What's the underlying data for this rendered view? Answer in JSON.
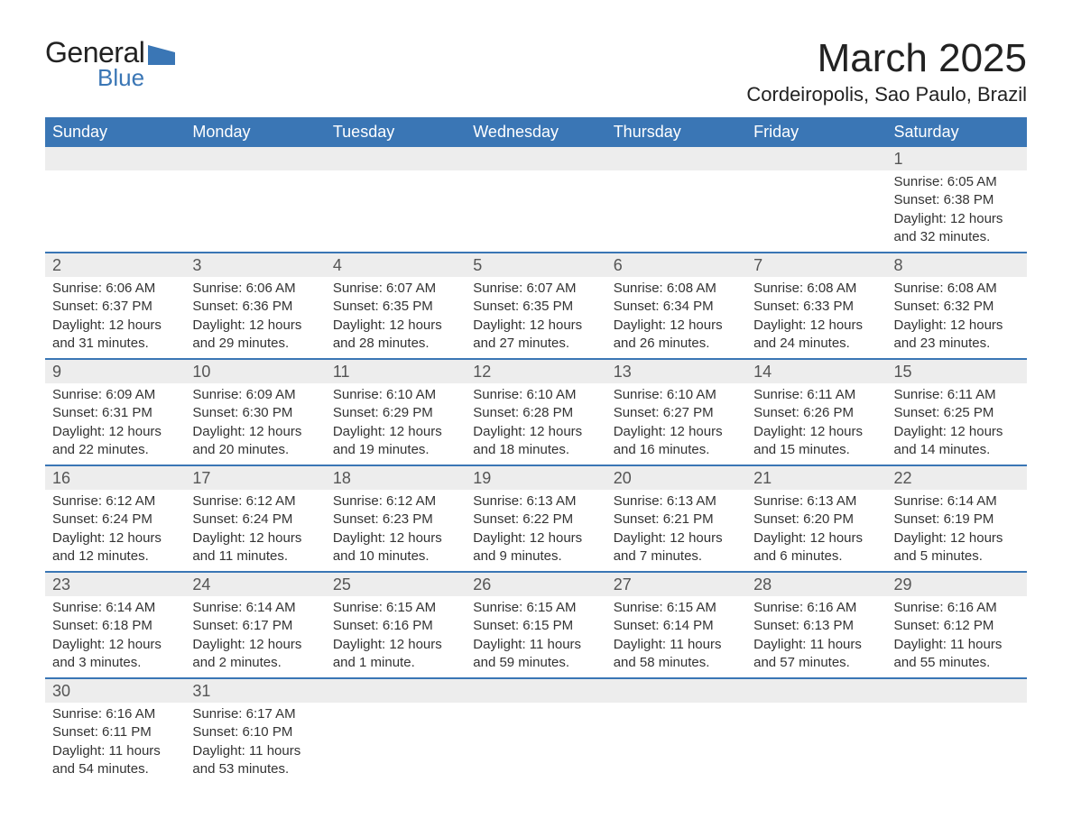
{
  "logo": {
    "text1": "General",
    "text2": "Blue",
    "shape_color": "#3a76b5"
  },
  "title": "March 2025",
  "location": "Cordeiropolis, Sao Paulo, Brazil",
  "colors": {
    "header_bg": "#3a76b5",
    "header_text": "#ffffff",
    "daynum_bg": "#ededed",
    "row_border": "#3a76b5",
    "body_text": "#333333"
  },
  "day_headers": [
    "Sunday",
    "Monday",
    "Tuesday",
    "Wednesday",
    "Thursday",
    "Friday",
    "Saturday"
  ],
  "weeks": [
    [
      null,
      null,
      null,
      null,
      null,
      null,
      {
        "n": "1",
        "sunrise": "Sunrise: 6:05 AM",
        "sunset": "Sunset: 6:38 PM",
        "dl1": "Daylight: 12 hours",
        "dl2": "and 32 minutes."
      }
    ],
    [
      {
        "n": "2",
        "sunrise": "Sunrise: 6:06 AM",
        "sunset": "Sunset: 6:37 PM",
        "dl1": "Daylight: 12 hours",
        "dl2": "and 31 minutes."
      },
      {
        "n": "3",
        "sunrise": "Sunrise: 6:06 AM",
        "sunset": "Sunset: 6:36 PM",
        "dl1": "Daylight: 12 hours",
        "dl2": "and 29 minutes."
      },
      {
        "n": "4",
        "sunrise": "Sunrise: 6:07 AM",
        "sunset": "Sunset: 6:35 PM",
        "dl1": "Daylight: 12 hours",
        "dl2": "and 28 minutes."
      },
      {
        "n": "5",
        "sunrise": "Sunrise: 6:07 AM",
        "sunset": "Sunset: 6:35 PM",
        "dl1": "Daylight: 12 hours",
        "dl2": "and 27 minutes."
      },
      {
        "n": "6",
        "sunrise": "Sunrise: 6:08 AM",
        "sunset": "Sunset: 6:34 PM",
        "dl1": "Daylight: 12 hours",
        "dl2": "and 26 minutes."
      },
      {
        "n": "7",
        "sunrise": "Sunrise: 6:08 AM",
        "sunset": "Sunset: 6:33 PM",
        "dl1": "Daylight: 12 hours",
        "dl2": "and 24 minutes."
      },
      {
        "n": "8",
        "sunrise": "Sunrise: 6:08 AM",
        "sunset": "Sunset: 6:32 PM",
        "dl1": "Daylight: 12 hours",
        "dl2": "and 23 minutes."
      }
    ],
    [
      {
        "n": "9",
        "sunrise": "Sunrise: 6:09 AM",
        "sunset": "Sunset: 6:31 PM",
        "dl1": "Daylight: 12 hours",
        "dl2": "and 22 minutes."
      },
      {
        "n": "10",
        "sunrise": "Sunrise: 6:09 AM",
        "sunset": "Sunset: 6:30 PM",
        "dl1": "Daylight: 12 hours",
        "dl2": "and 20 minutes."
      },
      {
        "n": "11",
        "sunrise": "Sunrise: 6:10 AM",
        "sunset": "Sunset: 6:29 PM",
        "dl1": "Daylight: 12 hours",
        "dl2": "and 19 minutes."
      },
      {
        "n": "12",
        "sunrise": "Sunrise: 6:10 AM",
        "sunset": "Sunset: 6:28 PM",
        "dl1": "Daylight: 12 hours",
        "dl2": "and 18 minutes."
      },
      {
        "n": "13",
        "sunrise": "Sunrise: 6:10 AM",
        "sunset": "Sunset: 6:27 PM",
        "dl1": "Daylight: 12 hours",
        "dl2": "and 16 minutes."
      },
      {
        "n": "14",
        "sunrise": "Sunrise: 6:11 AM",
        "sunset": "Sunset: 6:26 PM",
        "dl1": "Daylight: 12 hours",
        "dl2": "and 15 minutes."
      },
      {
        "n": "15",
        "sunrise": "Sunrise: 6:11 AM",
        "sunset": "Sunset: 6:25 PM",
        "dl1": "Daylight: 12 hours",
        "dl2": "and 14 minutes."
      }
    ],
    [
      {
        "n": "16",
        "sunrise": "Sunrise: 6:12 AM",
        "sunset": "Sunset: 6:24 PM",
        "dl1": "Daylight: 12 hours",
        "dl2": "and 12 minutes."
      },
      {
        "n": "17",
        "sunrise": "Sunrise: 6:12 AM",
        "sunset": "Sunset: 6:24 PM",
        "dl1": "Daylight: 12 hours",
        "dl2": "and 11 minutes."
      },
      {
        "n": "18",
        "sunrise": "Sunrise: 6:12 AM",
        "sunset": "Sunset: 6:23 PM",
        "dl1": "Daylight: 12 hours",
        "dl2": "and 10 minutes."
      },
      {
        "n": "19",
        "sunrise": "Sunrise: 6:13 AM",
        "sunset": "Sunset: 6:22 PM",
        "dl1": "Daylight: 12 hours",
        "dl2": "and 9 minutes."
      },
      {
        "n": "20",
        "sunrise": "Sunrise: 6:13 AM",
        "sunset": "Sunset: 6:21 PM",
        "dl1": "Daylight: 12 hours",
        "dl2": "and 7 minutes."
      },
      {
        "n": "21",
        "sunrise": "Sunrise: 6:13 AM",
        "sunset": "Sunset: 6:20 PM",
        "dl1": "Daylight: 12 hours",
        "dl2": "and 6 minutes."
      },
      {
        "n": "22",
        "sunrise": "Sunrise: 6:14 AM",
        "sunset": "Sunset: 6:19 PM",
        "dl1": "Daylight: 12 hours",
        "dl2": "and 5 minutes."
      }
    ],
    [
      {
        "n": "23",
        "sunrise": "Sunrise: 6:14 AM",
        "sunset": "Sunset: 6:18 PM",
        "dl1": "Daylight: 12 hours",
        "dl2": "and 3 minutes."
      },
      {
        "n": "24",
        "sunrise": "Sunrise: 6:14 AM",
        "sunset": "Sunset: 6:17 PM",
        "dl1": "Daylight: 12 hours",
        "dl2": "and 2 minutes."
      },
      {
        "n": "25",
        "sunrise": "Sunrise: 6:15 AM",
        "sunset": "Sunset: 6:16 PM",
        "dl1": "Daylight: 12 hours",
        "dl2": "and 1 minute."
      },
      {
        "n": "26",
        "sunrise": "Sunrise: 6:15 AM",
        "sunset": "Sunset: 6:15 PM",
        "dl1": "Daylight: 11 hours",
        "dl2": "and 59 minutes."
      },
      {
        "n": "27",
        "sunrise": "Sunrise: 6:15 AM",
        "sunset": "Sunset: 6:14 PM",
        "dl1": "Daylight: 11 hours",
        "dl2": "and 58 minutes."
      },
      {
        "n": "28",
        "sunrise": "Sunrise: 6:16 AM",
        "sunset": "Sunset: 6:13 PM",
        "dl1": "Daylight: 11 hours",
        "dl2": "and 57 minutes."
      },
      {
        "n": "29",
        "sunrise": "Sunrise: 6:16 AM",
        "sunset": "Sunset: 6:12 PM",
        "dl1": "Daylight: 11 hours",
        "dl2": "and 55 minutes."
      }
    ],
    [
      {
        "n": "30",
        "sunrise": "Sunrise: 6:16 AM",
        "sunset": "Sunset: 6:11 PM",
        "dl1": "Daylight: 11 hours",
        "dl2": "and 54 minutes."
      },
      {
        "n": "31",
        "sunrise": "Sunrise: 6:17 AM",
        "sunset": "Sunset: 6:10 PM",
        "dl1": "Daylight: 11 hours",
        "dl2": "and 53 minutes."
      },
      null,
      null,
      null,
      null,
      null
    ]
  ]
}
